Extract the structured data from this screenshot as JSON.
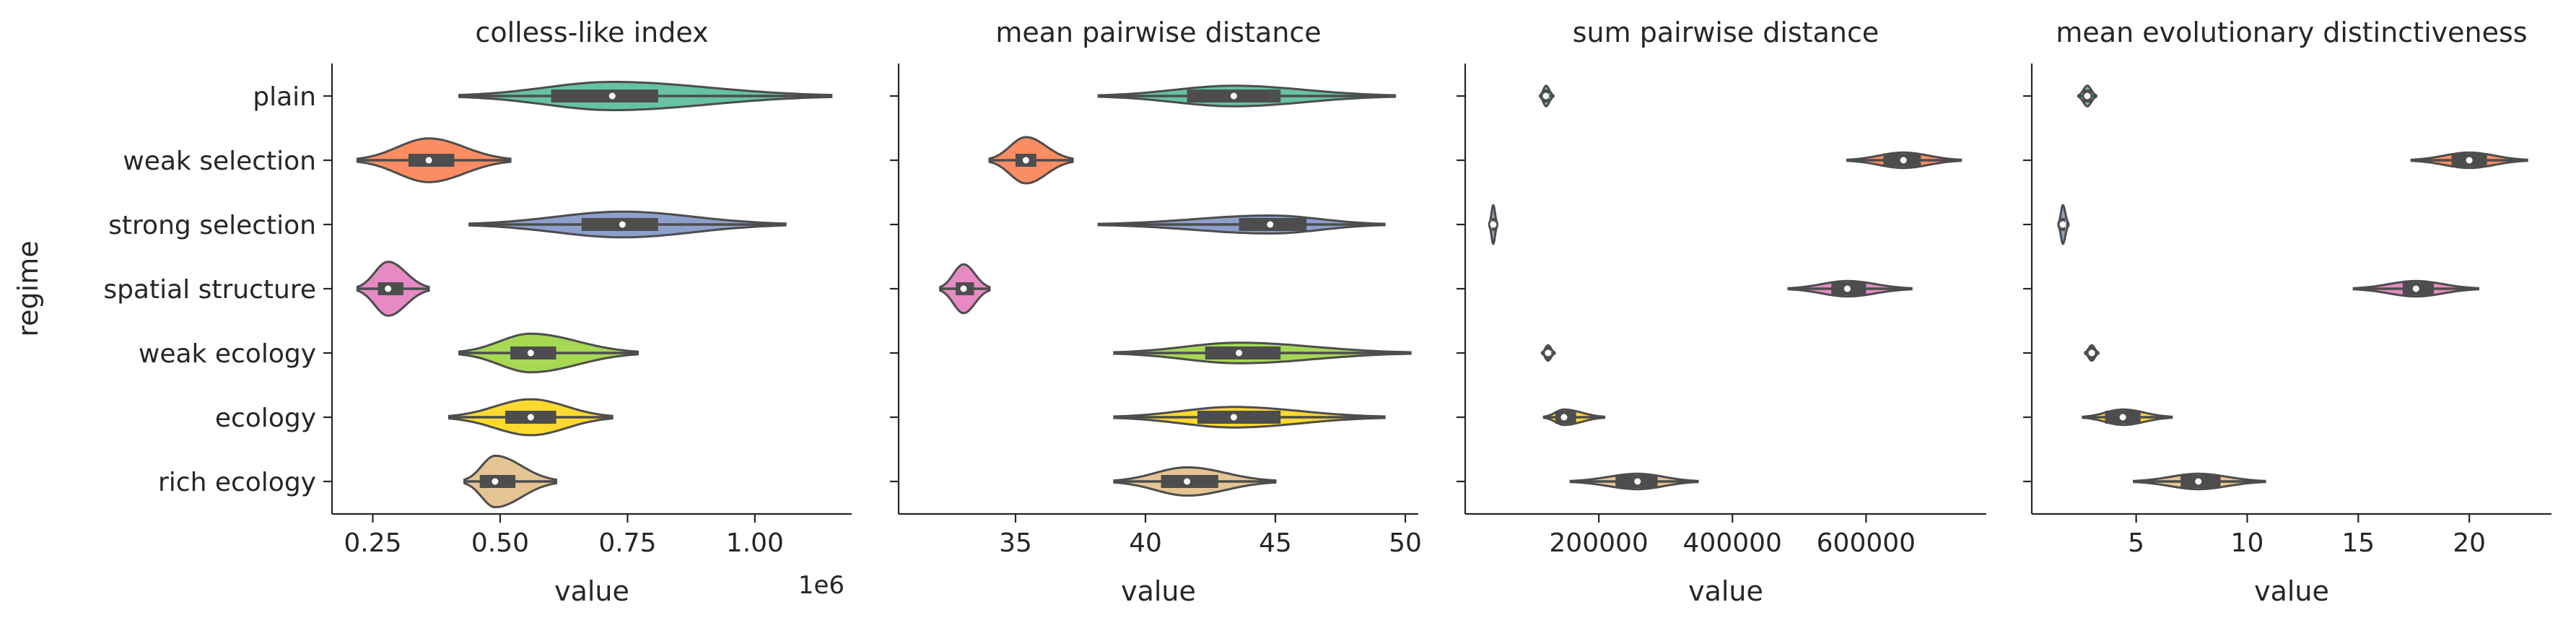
{
  "chart_data": {
    "type": "violin",
    "orientation": "horizontal",
    "ylabel": "regime",
    "categories": [
      "plain",
      "weak selection",
      "strong selection",
      "spatial structure",
      "weak ecology",
      "ecology",
      "rich ecology"
    ],
    "colors": {
      "plain": "#66c2a5",
      "weak selection": "#fc8d62",
      "strong selection": "#8da0cb",
      "spatial structure": "#e78ac3",
      "weak ecology": "#a6d854",
      "ecology": "#ffd92f",
      "rich ecology": "#e5c494"
    },
    "panels": [
      {
        "title": "colless-like index",
        "xlabel": "value",
        "offset_text": "1e6",
        "xlim": [
          0.17,
          1.19
        ],
        "ticks": [
          0.25,
          0.5,
          0.75,
          1.0
        ],
        "tick_labels": [
          "0.25",
          "0.50",
          "0.75",
          "1.00"
        ],
        "series": [
          {
            "category": "plain",
            "min": 0.42,
            "q1": 0.6,
            "median": 0.72,
            "q3": 0.81,
            "max": 1.15,
            "halfwidth": 0.22
          },
          {
            "category": "weak selection",
            "min": 0.22,
            "q1": 0.32,
            "median": 0.36,
            "q3": 0.41,
            "max": 0.52,
            "halfwidth": 0.34
          },
          {
            "category": "strong selection",
            "min": 0.44,
            "q1": 0.66,
            "median": 0.74,
            "q3": 0.81,
            "max": 1.06,
            "halfwidth": 0.2
          },
          {
            "category": "spatial structure",
            "min": 0.22,
            "q1": 0.26,
            "median": 0.28,
            "q3": 0.31,
            "max": 0.36,
            "halfwidth": 0.42
          },
          {
            "category": "weak ecology",
            "min": 0.42,
            "q1": 0.52,
            "median": 0.56,
            "q3": 0.61,
            "max": 0.77,
            "halfwidth": 0.3
          },
          {
            "category": "ecology",
            "min": 0.4,
            "q1": 0.51,
            "median": 0.56,
            "q3": 0.61,
            "max": 0.72,
            "halfwidth": 0.28
          },
          {
            "category": "rich ecology",
            "min": 0.43,
            "q1": 0.46,
            "median": 0.49,
            "q3": 0.53,
            "max": 0.61,
            "halfwidth": 0.4
          }
        ]
      },
      {
        "title": "mean pairwise distance",
        "xlabel": "value",
        "xlim": [
          30.5,
          50.5
        ],
        "ticks": [
          35,
          40,
          45,
          50
        ],
        "tick_labels": [
          "35",
          "40",
          "45",
          "50"
        ],
        "series": [
          {
            "category": "plain",
            "min": 38.2,
            "q1": 41.6,
            "median": 43.4,
            "q3": 45.2,
            "max": 49.6,
            "halfwidth": 0.16
          },
          {
            "category": "weak selection",
            "min": 34.0,
            "q1": 35.0,
            "median": 35.4,
            "q3": 35.8,
            "max": 37.2,
            "halfwidth": 0.36
          },
          {
            "category": "strong selection",
            "min": 38.2,
            "q1": 43.6,
            "median": 44.8,
            "q3": 46.2,
            "max": 49.2,
            "halfwidth": 0.14
          },
          {
            "category": "spatial structure",
            "min": 32.1,
            "q1": 32.7,
            "median": 33.0,
            "q3": 33.4,
            "max": 34.0,
            "halfwidth": 0.38
          },
          {
            "category": "weak ecology",
            "min": 38.8,
            "q1": 42.3,
            "median": 43.6,
            "q3": 45.2,
            "max": 50.2,
            "halfwidth": 0.16
          },
          {
            "category": "ecology",
            "min": 38.8,
            "q1": 42.0,
            "median": 43.4,
            "q3": 45.2,
            "max": 49.2,
            "halfwidth": 0.16
          },
          {
            "category": "rich ecology",
            "min": 38.8,
            "q1": 40.6,
            "median": 41.6,
            "q3": 42.8,
            "max": 45.0,
            "halfwidth": 0.22
          }
        ]
      },
      {
        "title": "sum pairwise distance",
        "xlabel": "value",
        "xlim": [
          0,
          780000
        ],
        "ticks": [
          200000,
          400000,
          600000
        ],
        "tick_labels": [
          "200000",
          "400000",
          "600000"
        ],
        "series": [
          {
            "category": "plain",
            "min": 112000,
            "q1": 116000,
            "median": 121000,
            "q3": 126000,
            "max": 132000,
            "halfwidth": 0.16
          },
          {
            "category": "weak selection",
            "min": 572000,
            "q1": 626000,
            "median": 656000,
            "q3": 682000,
            "max": 742000,
            "halfwidth": 0.12
          },
          {
            "category": "strong selection",
            "min": 36000,
            "q1": 40000,
            "median": 42000,
            "q3": 45000,
            "max": 48000,
            "halfwidth": 0.3
          },
          {
            "category": "spatial structure",
            "min": 484000,
            "q1": 548000,
            "median": 572000,
            "q3": 600000,
            "max": 668000,
            "halfwidth": 0.12
          },
          {
            "category": "weak ecology",
            "min": 115000,
            "q1": 119000,
            "median": 124000,
            "q3": 128000,
            "max": 134000,
            "halfwidth": 0.12
          },
          {
            "category": "ecology",
            "min": 118000,
            "q1": 135000,
            "median": 148000,
            "q3": 166000,
            "max": 208000,
            "halfwidth": 0.12
          },
          {
            "category": "rich ecology",
            "min": 158000,
            "q1": 225000,
            "median": 258000,
            "q3": 288000,
            "max": 348000,
            "halfwidth": 0.12
          }
        ]
      },
      {
        "title": "mean evolutionary distinctiveness",
        "xlabel": "value",
        "xlim": [
          0.3,
          23.7
        ],
        "ticks": [
          5,
          10,
          15,
          20
        ],
        "tick_labels": [
          "5",
          "10",
          "15",
          "20"
        ],
        "series": [
          {
            "category": "plain",
            "min": 2.4,
            "q1": 2.6,
            "median": 2.8,
            "q3": 3.0,
            "max": 3.2,
            "halfwidth": 0.16
          },
          {
            "category": "weak selection",
            "min": 17.4,
            "q1": 19.2,
            "median": 20.0,
            "q3": 20.8,
            "max": 22.6,
            "halfwidth": 0.12
          },
          {
            "category": "strong selection",
            "min": 1.5,
            "q1": 1.6,
            "median": 1.7,
            "q3": 1.8,
            "max": 1.95,
            "halfwidth": 0.3
          },
          {
            "category": "spatial structure",
            "min": 14.8,
            "q1": 17.0,
            "median": 17.6,
            "q3": 18.4,
            "max": 20.4,
            "halfwidth": 0.12
          },
          {
            "category": "weak ecology",
            "min": 2.7,
            "q1": 2.85,
            "median": 3.0,
            "q3": 3.15,
            "max": 3.3,
            "halfwidth": 0.12
          },
          {
            "category": "ecology",
            "min": 2.6,
            "q1": 3.6,
            "median": 4.4,
            "q3": 5.2,
            "max": 6.6,
            "halfwidth": 0.12
          },
          {
            "category": "rich ecology",
            "min": 4.9,
            "q1": 7.0,
            "median": 7.8,
            "q3": 8.8,
            "max": 10.8,
            "halfwidth": 0.12
          }
        ]
      }
    ]
  }
}
